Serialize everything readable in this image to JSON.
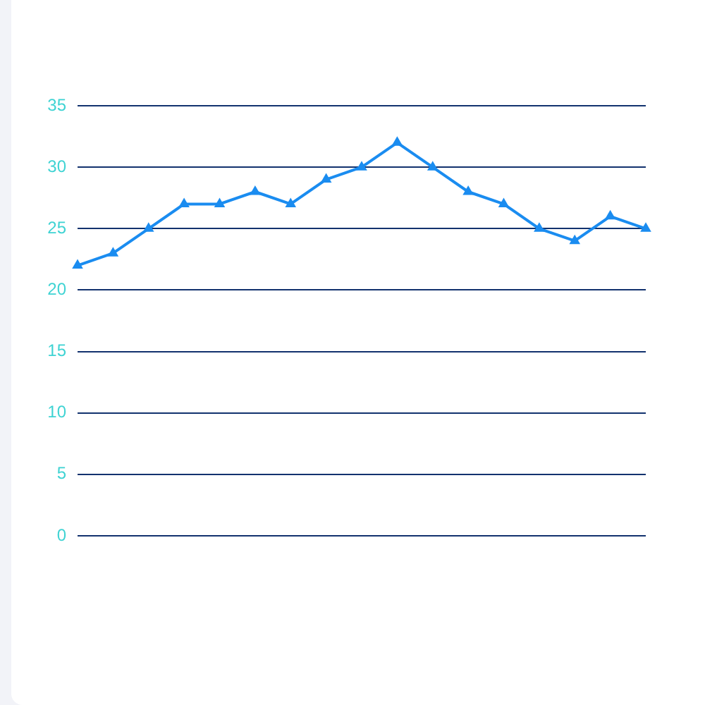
{
  "chart_data": {
    "type": "line",
    "categories": [
      null,
      null,
      null,
      null,
      null,
      null,
      null,
      null,
      null,
      null,
      null,
      null,
      null,
      null,
      null,
      null,
      null
    ],
    "values": [
      22,
      23,
      25,
      27,
      27,
      28,
      27,
      29,
      30,
      32,
      30,
      28,
      27,
      25,
      24,
      26,
      25
    ],
    "color": "#1a8cf0",
    "ylim": [
      0,
      35
    ],
    "yticks": [
      0,
      5,
      10,
      15,
      20,
      25,
      30,
      35
    ],
    "grid": "y",
    "marker": "triangle",
    "tick_labels": "y"
  }
}
